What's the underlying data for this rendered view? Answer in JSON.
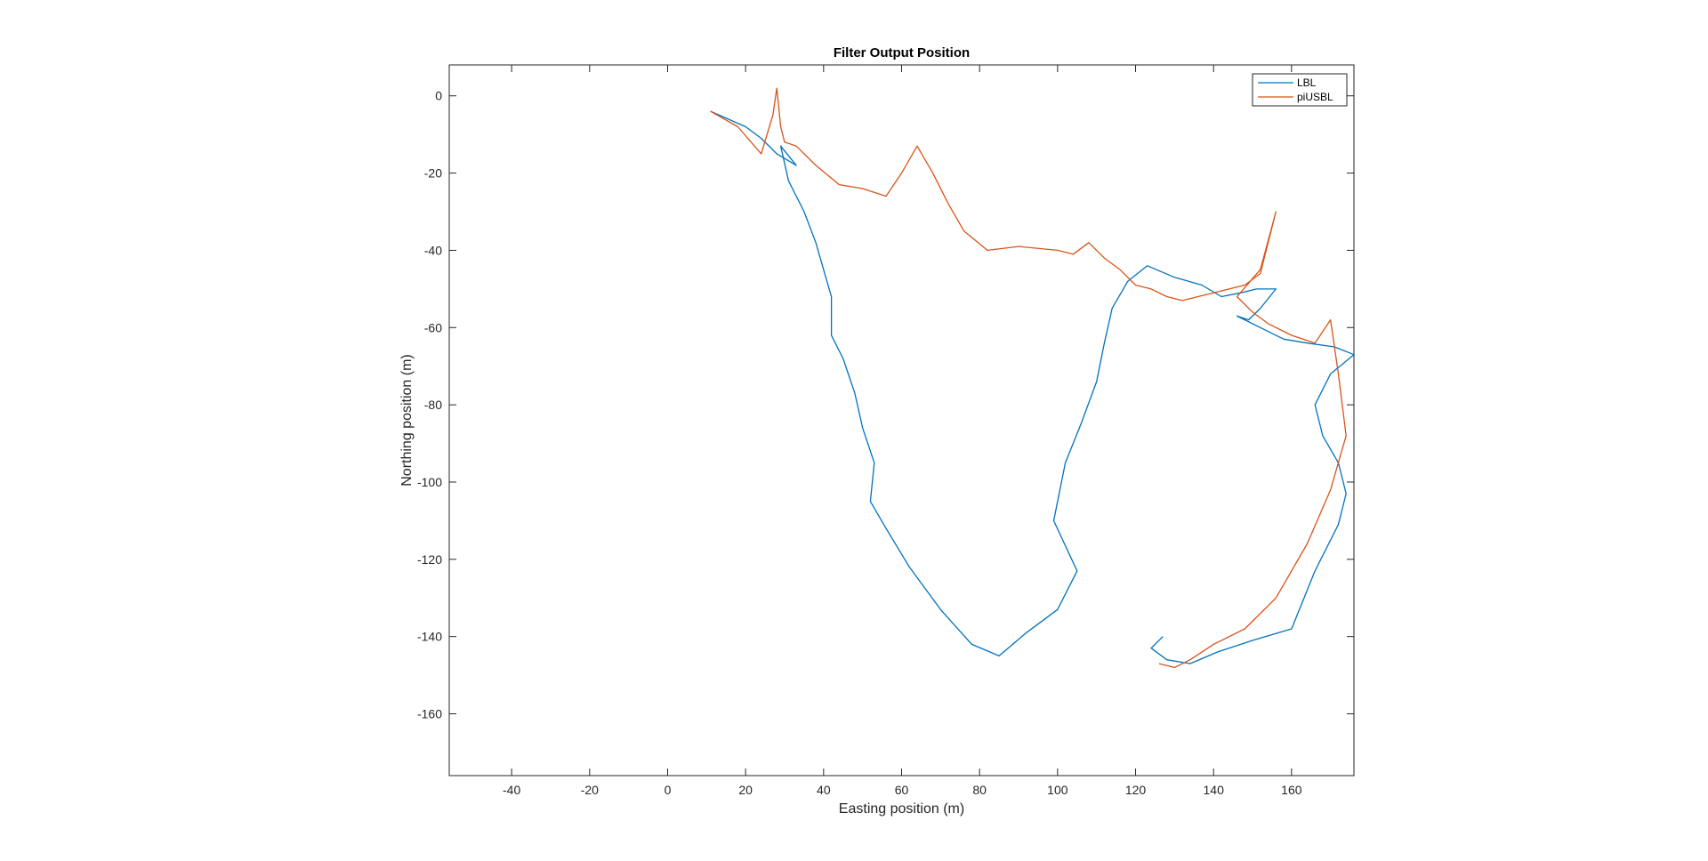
{
  "chart_data": {
    "type": "line",
    "title": "Filter Output Position",
    "xlabel": "Easting position (m)",
    "ylabel": "Northing position (m)",
    "xlim": [
      -56,
      176
    ],
    "ylim": [
      -176,
      8
    ],
    "xticks": [
      -40,
      -20,
      0,
      20,
      40,
      60,
      80,
      100,
      120,
      140,
      160
    ],
    "yticks": [
      0,
      -20,
      -40,
      -60,
      -80,
      -100,
      -120,
      -140,
      -160
    ],
    "grid": false,
    "legend_position": "top-right",
    "series": [
      {
        "name": "LBL",
        "color": "#0072BD",
        "x": [
          11,
          20,
          24,
          28,
          33,
          29,
          31,
          35,
          38,
          40,
          42,
          42,
          45,
          48,
          50,
          53,
          52,
          56,
          62,
          70,
          78,
          85,
          92,
          100,
          105,
          99,
          102,
          106,
          110,
          112,
          114,
          118,
          123,
          130,
          137,
          142,
          147,
          151,
          156,
          152,
          149,
          146,
          152,
          158,
          164,
          171,
          176,
          170,
          166,
          168,
          172,
          174,
          172,
          166,
          160,
          150,
          141,
          134,
          128,
          124,
          127
        ],
        "y": [
          -4,
          -8,
          -11,
          -15,
          -18,
          -13,
          -22,
          -30,
          -38,
          -45,
          -52,
          -62,
          -68,
          -77,
          -86,
          -95,
          -105,
          -112,
          -122,
          -133,
          -142,
          -145,
          -139,
          -133,
          -123,
          -110,
          -95,
          -85,
          -74,
          -64,
          -55,
          -48,
          -44,
          -47,
          -49,
          -52,
          -51,
          -50,
          -50,
          -55,
          -58,
          -57,
          -60,
          -63,
          -64,
          -65,
          -67,
          -72,
          -80,
          -88,
          -95,
          -103,
          -111,
          -123,
          -138,
          -141,
          -144,
          -147,
          -146,
          -143,
          -140
        ]
      },
      {
        "name": "piUSBL",
        "color": "#D95319",
        "x": [
          11,
          18,
          24,
          27,
          28,
          29,
          30,
          33,
          38,
          44,
          50,
          56,
          60,
          64,
          68,
          72,
          76,
          82,
          90,
          100,
          104,
          108,
          112,
          116,
          120,
          124,
          128,
          132,
          136,
          140,
          144,
          148,
          152,
          156,
          152,
          146,
          150,
          154,
          160,
          166,
          170,
          172,
          174,
          170,
          164,
          156,
          148,
          140,
          134,
          130,
          126
        ],
        "y": [
          -4,
          -8,
          -15,
          -5,
          2,
          -8,
          -12,
          -13,
          -18,
          -23,
          -24,
          -26,
          -20,
          -13,
          -20,
          -28,
          -35,
          -40,
          -39,
          -40,
          -41,
          -38,
          -42,
          -45,
          -49,
          -50,
          -52,
          -53,
          -52,
          -51,
          -50,
          -49,
          -46,
          -30,
          -45,
          -52,
          -56,
          -59,
          -62,
          -64,
          -58,
          -72,
          -88,
          -102,
          -116,
          -130,
          -138,
          -142,
          -146,
          -148,
          -147
        ]
      }
    ]
  }
}
